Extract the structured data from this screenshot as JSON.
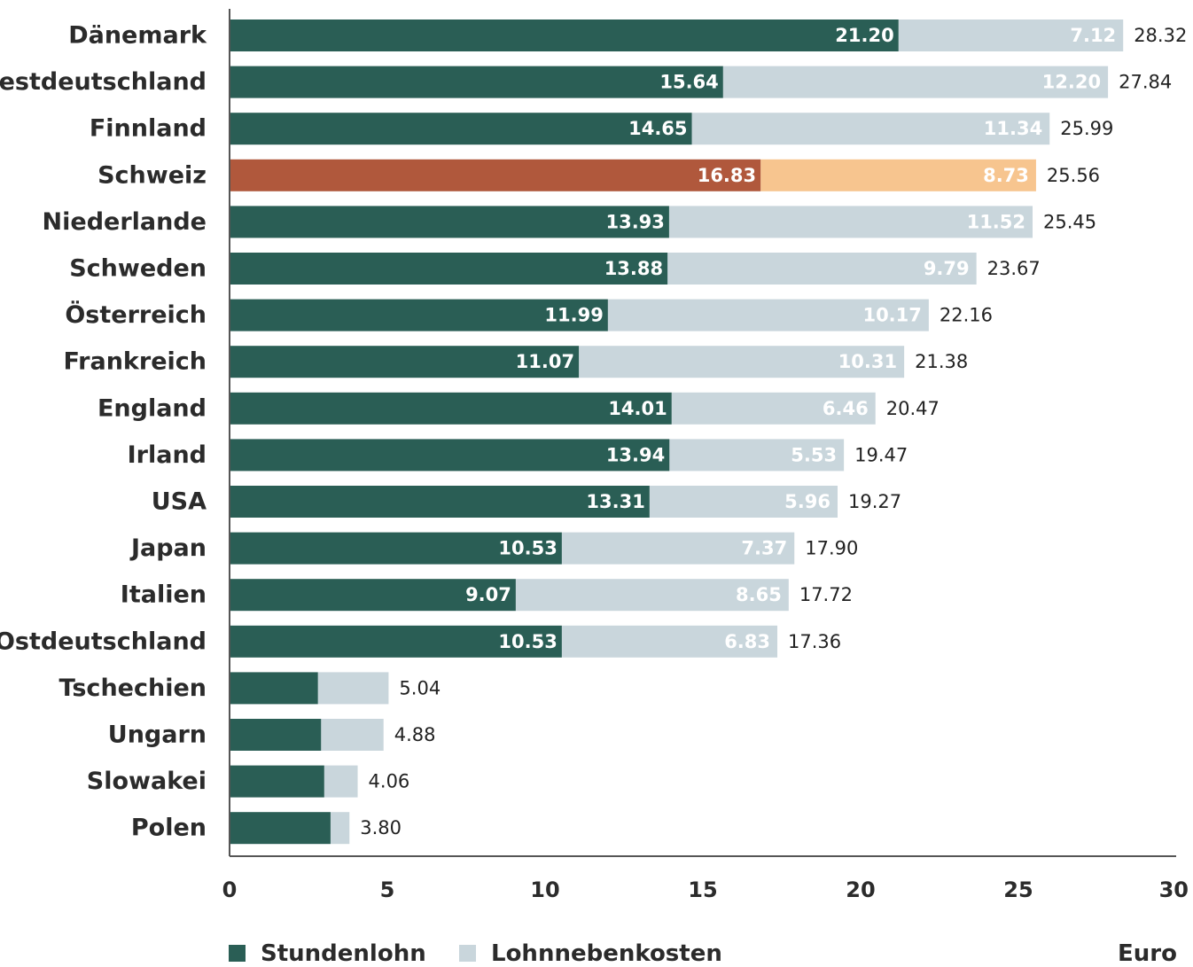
{
  "chart_data": {
    "type": "bar",
    "orientation": "horizontal",
    "stacked": true,
    "categories": [
      "Dänemark",
      "Westdeutschland",
      "Finnland",
      "Schweiz",
      "Niederlande",
      "Schweden",
      "Österreich",
      "Frankreich",
      "England",
      "Irland",
      "USA",
      "Japan",
      "Italien",
      "Ostdeutschland",
      "Tschechien",
      "Ungarn",
      "Slowakei",
      "Polen"
    ],
    "highlight": "Schweiz",
    "series": [
      {
        "name": "Stundenlohn",
        "color": "#2a5e55",
        "highlight_color": "#b0583c",
        "values": [
          21.2,
          15.64,
          14.65,
          16.83,
          13.93,
          13.88,
          11.99,
          11.07,
          14.01,
          13.94,
          13.31,
          10.53,
          9.07,
          10.53,
          2.8,
          2.9,
          3.0,
          3.2
        ],
        "labels": [
          "21.20",
          "15.64",
          "14.65",
          "16.83",
          "13.93",
          "13.88",
          "11.99",
          "11.07",
          "14.01",
          "13.94",
          "13.31",
          "10.53",
          "9.07",
          "10.53",
          "",
          "",
          "",
          ""
        ]
      },
      {
        "name": "Lohnnebenkosten",
        "color": "#c9d6dc",
        "highlight_color": "#f7c58f",
        "values": [
          7.12,
          12.2,
          11.34,
          8.73,
          11.52,
          9.79,
          10.17,
          10.31,
          6.46,
          5.53,
          5.96,
          7.37,
          8.65,
          6.83,
          2.24,
          1.98,
          1.06,
          0.6
        ],
        "labels": [
          "7.12",
          "12.20",
          "11.34",
          "8.73",
          "11.52",
          "9.79",
          "10.17",
          "10.31",
          "6.46",
          "5.53",
          "5.96",
          "7.37",
          "8.65",
          "6.83",
          "",
          "",
          "",
          ""
        ]
      }
    ],
    "totals": [
      "28.32",
      "27.84",
      "25.99",
      "25.56",
      "25.45",
      "23.67",
      "22.16",
      "21.38",
      "20.47",
      "19.47",
      "19.27",
      "17.90",
      "17.72",
      "17.36",
      "5.04",
      "4.88",
      "4.06",
      "3.80"
    ],
    "xlim": [
      0,
      30
    ],
    "xticks": [
      "0",
      "5",
      "10",
      "15",
      "20",
      "25",
      "30"
    ],
    "xlabel": "Euro",
    "ylabel": "",
    "title": "",
    "grid": false,
    "legend_position": "bottom-left"
  }
}
